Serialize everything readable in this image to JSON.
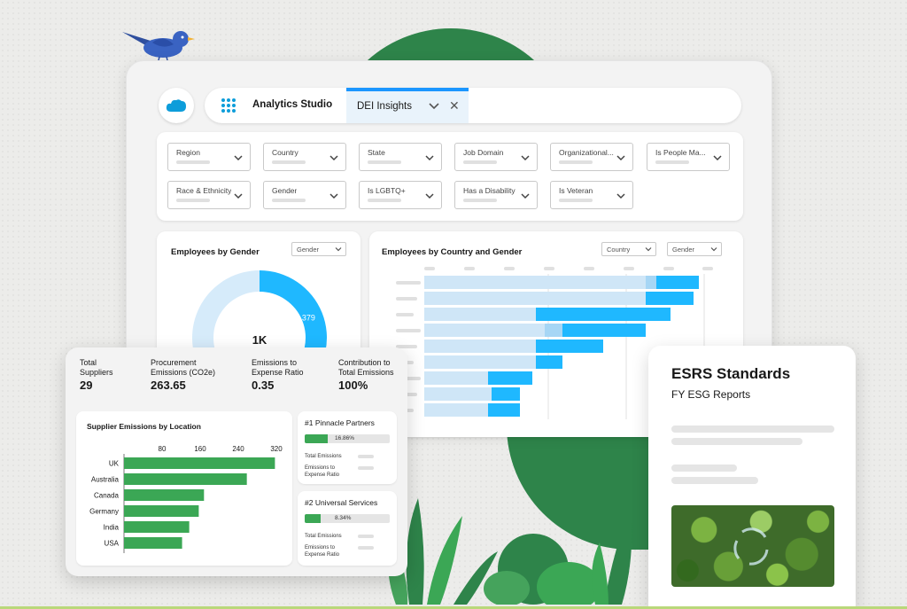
{
  "analytics": {
    "app_title": "Analytics Studio",
    "tab_label": "DEI Insights",
    "filters": [
      {
        "label": "Region"
      },
      {
        "label": "Country"
      },
      {
        "label": "State"
      },
      {
        "label": "Job Domain"
      },
      {
        "label": "Organizational..."
      },
      {
        "label": "Is People Ma..."
      },
      {
        "label": "Race & Ethnicity"
      },
      {
        "label": "Gender"
      },
      {
        "label": "Is LGBTQ+"
      },
      {
        "label": "Has a Disability"
      },
      {
        "label": "Is Veteran"
      }
    ],
    "gender_card": {
      "title": "Employees by Gender",
      "select": "Gender",
      "chart_data": {
        "type": "pie",
        "donut": true,
        "segments": [
          {
            "label": "379",
            "value": 379,
            "color": "#1fb8ff"
          },
          {
            "label": "",
            "value": 621,
            "color": "#d6ebfa"
          }
        ],
        "center_label": "1K"
      }
    },
    "country_card": {
      "title": "Employees by Country and Gender",
      "select_country": "Country",
      "select_gender": "Gender",
      "chart_data": {
        "type": "bar",
        "orientation": "horizontal",
        "stacked": true,
        "colors": [
          "#cfe6f7",
          "#a6d6f5",
          "#1fb8ff"
        ],
        "rows": [
          [
            250,
            12,
            48
          ],
          [
            250,
            0,
            54
          ],
          [
            126,
            0,
            152
          ],
          [
            136,
            20,
            94
          ],
          [
            126,
            0,
            76
          ],
          [
            126,
            0,
            30
          ],
          [
            72,
            0,
            50
          ],
          [
            76,
            0,
            32
          ],
          [
            72,
            0,
            36
          ]
        ]
      }
    }
  },
  "supplier": {
    "kpis": [
      {
        "label": "Total\nSuppliers",
        "value": "29"
      },
      {
        "label": "Procurement\nEmissions (CO2e)",
        "value": "263.65"
      },
      {
        "label": "Emissions to\nExpense Ratio",
        "value": "0.35"
      },
      {
        "label": "Contribution to\nTotal Emissions",
        "value": "100%"
      }
    ],
    "location_chart": {
      "title": "Supplier Emissions by Location",
      "chart_data": {
        "type": "bar",
        "orientation": "horizontal",
        "ticks": [
          "80",
          "160",
          "240",
          "320"
        ],
        "xlim": [
          0,
          320
        ],
        "categories": [
          "UK",
          "Australia",
          "Canada",
          "Germany",
          "India",
          "USA"
        ],
        "values": [
          317,
          258,
          168,
          157,
          137,
          122
        ],
        "color": "#3ba755"
      }
    },
    "partners": [
      {
        "title": "#1 Pinnacle Partners",
        "percent_label": "16.86%",
        "fill": 0.2686,
        "row1": "Total Emissions",
        "row2": "Emissions to\nExpense Ratio"
      },
      {
        "title": "#2 Universal Services",
        "percent_label": "8.34%",
        "fill": 0.1834,
        "row1": "Total Emissions",
        "row2": "Emissions to\nExpense Ratio"
      }
    ]
  },
  "esrs": {
    "title": "ESRS Standards",
    "subtitle": "FY  ESG Reports"
  },
  "colors": {
    "accent_blue": "#1b96ff",
    "brand_green": "#2e844a",
    "bar_green": "#3ba755"
  }
}
